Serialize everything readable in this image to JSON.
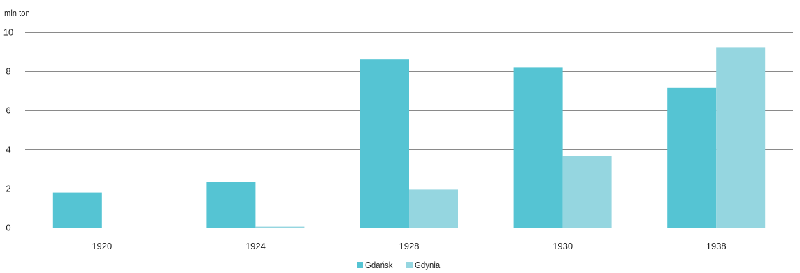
{
  "chart_data": {
    "type": "bar",
    "ylabel": "mln ton",
    "categories": [
      "1920",
      "1924",
      "1928",
      "1930",
      "1938"
    ],
    "series": [
      {
        "name": "Gdańsk",
        "values": [
          1.8,
          2.35,
          8.6,
          8.2,
          7.15
        ],
        "color": "#55c4d3"
      },
      {
        "name": "Gdynia",
        "values": [
          0.0,
          0.05,
          1.95,
          3.65,
          9.2
        ],
        "color": "#95d6e0"
      }
    ],
    "ylim": [
      0,
      10
    ],
    "yticks": [
      0,
      2,
      4,
      6,
      8,
      10
    ],
    "grid": true,
    "legend": "bottom-center"
  }
}
